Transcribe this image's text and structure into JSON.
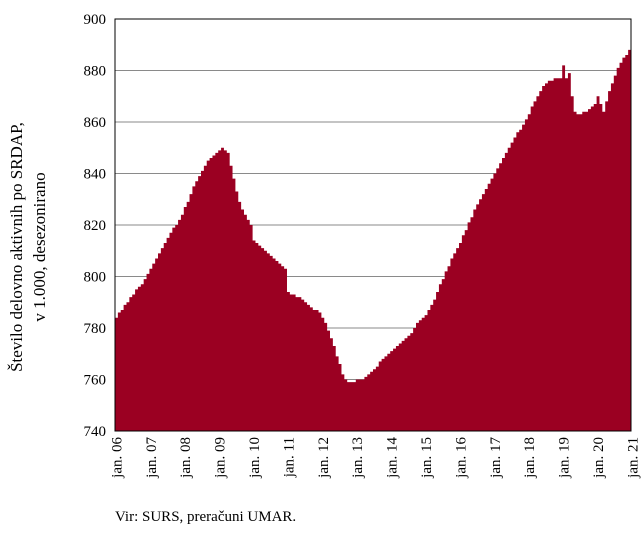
{
  "chart_data": {
    "type": "area",
    "ylabel_line1": "Število delovno aktivnih po SRDAP,",
    "ylabel_line2": "v 1.000, desezonirano",
    "source": "Vir: SURS, preračuni UMAR.",
    "ylim": [
      740,
      900
    ],
    "yticks": [
      740,
      760,
      780,
      800,
      820,
      840,
      860,
      880,
      900
    ],
    "xticks": [
      "jan. 06",
      "jan. 07",
      "jan. 08",
      "jan. 09",
      "jan. 10",
      "jan. 11",
      "jan. 12",
      "jan. 13",
      "jan. 14",
      "jan. 15",
      "jan. 16",
      "jan. 17",
      "jan. 18",
      "jan. 19",
      "jan. 20",
      "jan. 21"
    ],
    "grid": true,
    "color": "#9b0022",
    "series": [
      {
        "frequency": "monthly, from jan. 06",
        "values": [
          784,
          786,
          787,
          789,
          790,
          792,
          793,
          795,
          796,
          797,
          799,
          801,
          803,
          805,
          807,
          809,
          811,
          813,
          815,
          817,
          819,
          820,
          822,
          824,
          827,
          829,
          832,
          835,
          837,
          839,
          841,
          843,
          845,
          846,
          847,
          848,
          849,
          850,
          849,
          848,
          843,
          838,
          833,
          829,
          826,
          824,
          822,
          820,
          814,
          813,
          812,
          811,
          810,
          809,
          808,
          807,
          806,
          805,
          804,
          803,
          794,
          793,
          793,
          792,
          792,
          791,
          790,
          789,
          788,
          787,
          787,
          786,
          784,
          782,
          779,
          776,
          773,
          769,
          766,
          762,
          760,
          759,
          759,
          759,
          760,
          760,
          760,
          761,
          762,
          763,
          764,
          765,
          767,
          768,
          769,
          770,
          771,
          772,
          773,
          774,
          775,
          776,
          777,
          778,
          780,
          782,
          783,
          784,
          785,
          787,
          789,
          791,
          794,
          797,
          799,
          802,
          804,
          807,
          809,
          811,
          813,
          816,
          818,
          821,
          823,
          826,
          828,
          830,
          832,
          834,
          836,
          838,
          840,
          842,
          844,
          846,
          848,
          850,
          852,
          854,
          856,
          857,
          859,
          861,
          863,
          866,
          868,
          870,
          872,
          874,
          875,
          876,
          876,
          877,
          877,
          877,
          882,
          877,
          879,
          870,
          864,
          863,
          863,
          864,
          864,
          865,
          866,
          867,
          870,
          867,
          864,
          868,
          872,
          875,
          878,
          881,
          883,
          885,
          886,
          888
        ]
      }
    ]
  }
}
